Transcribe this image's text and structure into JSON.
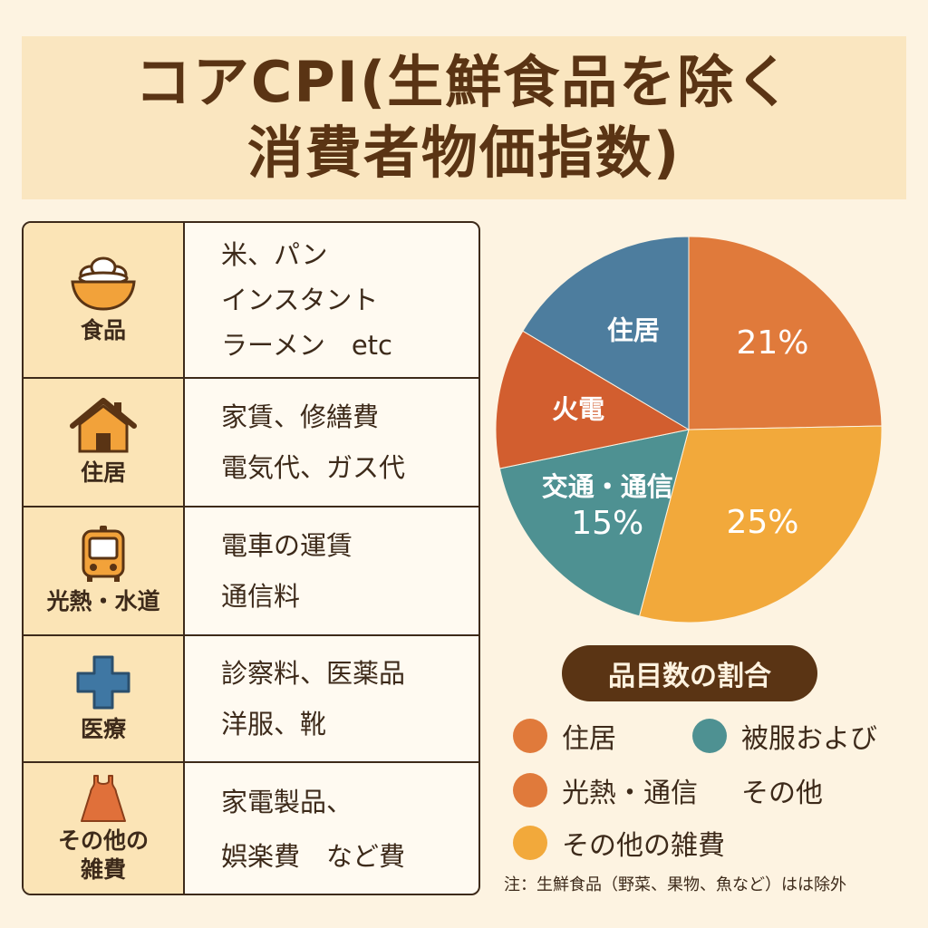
{
  "header": {
    "title_line1": "コアCPI(生鮮食品を除く",
    "title_line2": "消費者物価指数)"
  },
  "categories": [
    {
      "name": "食品",
      "icon": "rice-bowl-icon",
      "items": [
        "米、パン",
        "インスタント",
        "ラーメン　etc"
      ]
    },
    {
      "name": "住居",
      "icon": "house-icon",
      "items": [
        "家賃、修繕費",
        "電気代、ガス代"
      ]
    },
    {
      "name": "光熱・水道",
      "icon": "train-icon",
      "items": [
        "電車の運賃",
        "通信料"
      ]
    },
    {
      "name": "医療",
      "icon": "medical-cross-icon",
      "items": [
        "診察料、医薬品",
        "洋服、靴"
      ]
    },
    {
      "name": "その他の雑費",
      "name_lines": [
        "その他の",
        "雑費"
      ],
      "icon": "dress-icon",
      "items": [
        "家電製品、",
        "娯楽費　など費"
      ]
    }
  ],
  "chart_data": {
    "type": "pie",
    "title": "品目数の割合",
    "slices": [
      {
        "label": "",
        "value_label": "21%",
        "value": 21,
        "color": "#e07a3b"
      },
      {
        "label": "",
        "value_label": "25%",
        "value": 25,
        "color": "#f2a93b"
      },
      {
        "label": "交通・通信",
        "value_label": "15%",
        "value": 15,
        "color": "#4e9192"
      },
      {
        "label": "火電",
        "value_label": "",
        "value": 10,
        "color": "#d25e2f"
      },
      {
        "label": "住居",
        "value_label": "",
        "value": 14,
        "color": "#4d7d9e"
      }
    ]
  },
  "legend": {
    "title": "品目数の割合",
    "items": [
      {
        "label": "住居",
        "color": "#e07a3b"
      },
      {
        "label": "被服および",
        "color": "#4e9192"
      },
      {
        "label": "光熱・通信",
        "color": "#e07a3b"
      },
      {
        "label": "その他",
        "color": ""
      },
      {
        "label": "その他の雑費",
        "color": "#f2a93b"
      }
    ]
  },
  "footnote": "注：生鮮食品（野菜、果物、魚など）はは除外"
}
